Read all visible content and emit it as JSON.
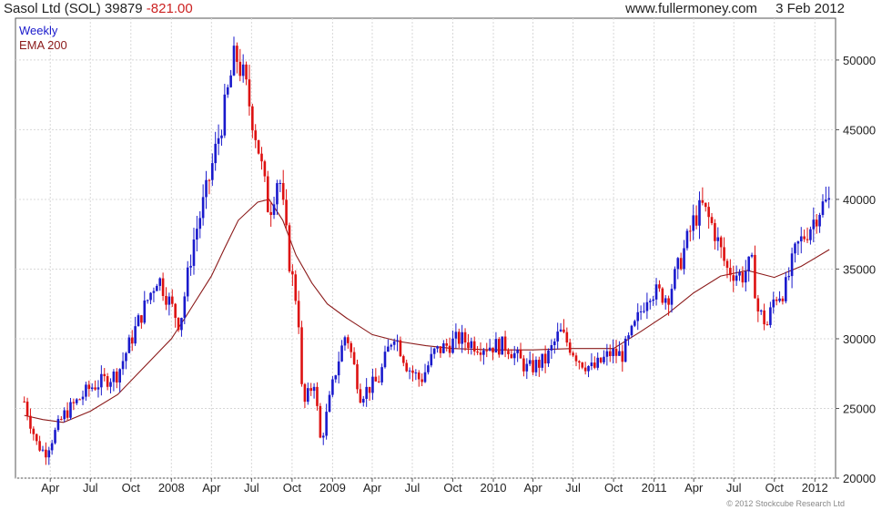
{
  "header": {
    "company": "Sasol Ltd",
    "symbol": "(SOL)",
    "last": "39879",
    "change": "-821.00",
    "site": "www.fullermoney.com",
    "date": "3 Feb 2012"
  },
  "legend": {
    "series1": "Weekly",
    "series2": "EMA 200"
  },
  "copyright": "© 2012 Stockcube Research Ltd",
  "colors": {
    "up": "#1a1acc",
    "down": "#dd1111",
    "ema": "#8b1a1a",
    "grid": "#d8d8d8"
  },
  "chart_data": {
    "type": "candlestick",
    "title": "Sasol Ltd (SOL) 39879 -821.00",
    "ylim": [
      20000,
      53000
    ],
    "yticks": [
      20000,
      25000,
      30000,
      35000,
      40000,
      45000,
      50000
    ],
    "ytick_labels": [
      "20000",
      "25000",
      "30000",
      "35000",
      "40000",
      "45000",
      "50000"
    ],
    "xticks": [
      "Apr",
      "Jul",
      "Oct",
      "2008",
      "Apr",
      "Jul",
      "Oct",
      "2009",
      "Apr",
      "Jul",
      "Oct",
      "2010",
      "Apr",
      "Jul",
      "Oct",
      "2011",
      "Apr",
      "Jul",
      "Oct",
      "2012"
    ],
    "grid": true,
    "legend_position": "top-left",
    "series": [
      {
        "name": "Weekly",
        "anchors": [
          [
            "2007-02-01",
            25500
          ],
          [
            "2007-03-01",
            22500
          ],
          [
            "2007-03-20",
            21800
          ],
          [
            "2007-05-01",
            24500
          ],
          [
            "2007-07-01",
            26500
          ],
          [
            "2007-09-01",
            27500
          ],
          [
            "2007-10-15",
            31000
          ],
          [
            "2007-12-01",
            34500
          ],
          [
            "2008-01-20",
            31000
          ],
          [
            "2008-02-20",
            37000
          ],
          [
            "2008-03-20",
            40500
          ],
          [
            "2008-05-01",
            46500
          ],
          [
            "2008-05-25",
            50500
          ],
          [
            "2008-06-15",
            48500
          ],
          [
            "2008-07-15",
            44000
          ],
          [
            "2008-08-10",
            39000
          ],
          [
            "2008-09-01",
            42000
          ],
          [
            "2008-09-25",
            35500
          ],
          [
            "2008-10-15",
            32000
          ],
          [
            "2008-10-25",
            25000
          ],
          [
            "2008-11-20",
            27000
          ],
          [
            "2008-12-05",
            22500
          ],
          [
            "2009-01-10",
            28000
          ],
          [
            "2009-02-01",
            30500
          ],
          [
            "2009-03-05",
            26000
          ],
          [
            "2009-04-15",
            27000
          ],
          [
            "2009-05-20",
            30500
          ],
          [
            "2009-06-20",
            28000
          ],
          [
            "2009-07-20",
            27000
          ],
          [
            "2009-08-20",
            29000
          ],
          [
            "2009-10-15",
            30000
          ],
          [
            "2009-12-01",
            29500
          ],
          [
            "2010-02-01",
            29500
          ],
          [
            "2010-03-20",
            27800
          ],
          [
            "2010-05-01",
            28500
          ],
          [
            "2010-06-01",
            30500
          ],
          [
            "2010-07-15",
            28500
          ],
          [
            "2010-08-15",
            27800
          ],
          [
            "2010-09-25",
            29000
          ],
          [
            "2010-10-20",
            28800
          ],
          [
            "2010-11-20",
            31000
          ],
          [
            "2010-12-20",
            33500
          ],
          [
            "2011-02-01",
            33000
          ],
          [
            "2011-03-01",
            35500
          ],
          [
            "2011-04-01",
            38500
          ],
          [
            "2011-04-20",
            39500
          ],
          [
            "2011-05-15",
            38000
          ],
          [
            "2011-06-15",
            35000
          ],
          [
            "2011-07-20",
            34500
          ],
          [
            "2011-08-10",
            35500
          ],
          [
            "2011-08-25",
            32000
          ],
          [
            "2011-09-15",
            31000
          ],
          [
            "2011-10-01",
            33000
          ],
          [
            "2011-10-25",
            33500
          ],
          [
            "2011-11-20",
            36500
          ],
          [
            "2011-12-20",
            38000
          ],
          [
            "2012-01-15",
            39500
          ],
          [
            "2012-02-03",
            39879
          ]
        ]
      },
      {
        "name": "EMA 200",
        "points": [
          [
            "2007-02-01",
            24500
          ],
          [
            "2007-03-15",
            24200
          ],
          [
            "2007-05-01",
            24000
          ],
          [
            "2007-07-01",
            24800
          ],
          [
            "2007-09-01",
            26000
          ],
          [
            "2007-11-01",
            28000
          ],
          [
            "2008-01-01",
            30000
          ],
          [
            "2008-02-01",
            31500
          ],
          [
            "2008-04-01",
            34500
          ],
          [
            "2008-05-01",
            36500
          ],
          [
            "2008-06-01",
            38500
          ],
          [
            "2008-07-15",
            39800
          ],
          [
            "2008-08-10",
            40000
          ],
          [
            "2008-09-10",
            38500
          ],
          [
            "2008-10-10",
            36000
          ],
          [
            "2008-11-15",
            34000
          ],
          [
            "2008-12-20",
            32500
          ],
          [
            "2009-02-01",
            31500
          ],
          [
            "2009-04-01",
            30300
          ],
          [
            "2009-06-01",
            29800
          ],
          [
            "2009-08-01",
            29500
          ],
          [
            "2009-10-01",
            29300
          ],
          [
            "2010-01-01",
            29200
          ],
          [
            "2010-04-01",
            29200
          ],
          [
            "2010-07-01",
            29300
          ],
          [
            "2010-10-01",
            29300
          ],
          [
            "2010-12-01",
            30500
          ],
          [
            "2011-02-01",
            31800
          ],
          [
            "2011-04-01",
            33300
          ],
          [
            "2011-06-01",
            34500
          ],
          [
            "2011-08-01",
            34900
          ],
          [
            "2011-10-01",
            34400
          ],
          [
            "2011-12-01",
            35200
          ],
          [
            "2012-02-03",
            36400
          ]
        ]
      }
    ]
  }
}
